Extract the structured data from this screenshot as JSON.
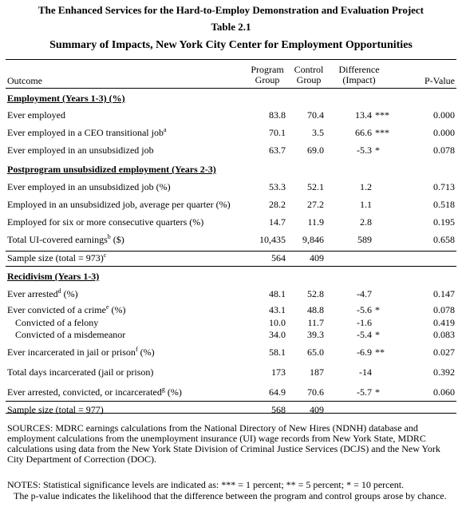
{
  "title_line1": "The Enhanced Services for the Hard-to-Employ Demonstration and Evaluation Project",
  "title_line2": "Table 2.1",
  "title_line3": "Summary of Impacts, New York City Center for Employment Opportunities",
  "headers": {
    "outcome": "Outcome",
    "program_1": "Program",
    "program_2": "Group",
    "control_1": "Control",
    "control_2": "Group",
    "difference_1": "Difference",
    "difference_2": "(Impact)",
    "pvalue": "P-Value"
  },
  "rows": [
    {
      "type": "section",
      "label": "Employment (Years 1-3) (%)",
      "top": 0
    },
    {
      "type": "data",
      "label": "Ever employed",
      "program": "83.8",
      "control": "70.4",
      "difference": "13.4",
      "stars": "***",
      "pvalue": "0.000"
    },
    {
      "type": "data",
      "label": "Ever employed in a CEO transitional job",
      "sup": "a",
      "program": "70.1",
      "control": "3.5",
      "difference": "66.6",
      "stars": "***",
      "pvalue": "0.000"
    },
    {
      "type": "data",
      "label": "Ever employed in an unsubsidized job",
      "program": "63.7",
      "control": "69.0",
      "difference": "-5.3",
      "stars": "*",
      "pvalue": "0.078"
    },
    {
      "type": "section",
      "label": "Postprogram unsubsidized employment  (Years 2-3)"
    },
    {
      "type": "data",
      "label": "Ever employed in an unsubsidized job (%)",
      "program": "53.3",
      "control": "52.1",
      "difference": "1.2",
      "stars": "",
      "pvalue": "0.713"
    },
    {
      "type": "data",
      "label": "Employed in an unsubsidized job, average per quarter (%)",
      "program": "28.2",
      "control": "27.2",
      "difference": "1.1",
      "stars": "",
      "pvalue": "0.518"
    },
    {
      "type": "data",
      "label": "Employed for six or more consecutive quarters (%)",
      "program": "14.7",
      "control": "11.9",
      "difference": "2.8",
      "stars": "",
      "pvalue": "0.195"
    },
    {
      "type": "data",
      "label": "Total UI-covered earnings",
      "sup": "b",
      "suffix": " ($)",
      "program": "10,435",
      "control": "9,846",
      "difference": "589",
      "stars": "",
      "pvalue": "0.658"
    },
    {
      "type": "sample",
      "label": "Sample size (total = 973)",
      "sup": "c",
      "program": "564",
      "control": "409"
    },
    {
      "type": "section",
      "label": "Recidivism (Years 1-3)"
    },
    {
      "type": "data",
      "label": "Ever arrested",
      "sup": "d",
      "suffix": " (%)",
      "program": "48.1",
      "control": "52.8",
      "difference": "-4.7",
      "stars": "",
      "pvalue": "0.147"
    },
    {
      "type": "data",
      "label": "Ever convicted of a crime",
      "sup": "e",
      "suffix": " (%)",
      "program": "43.1",
      "control": "48.8",
      "difference": "-5.6",
      "stars": "*",
      "pvalue": "0.078"
    },
    {
      "type": "data",
      "label": "Convicted of a felony",
      "indent": true,
      "program": "10.0",
      "control": "11.7",
      "difference": "-1.6",
      "stars": "",
      "pvalue": "0.419"
    },
    {
      "type": "data",
      "label": "Convicted of a misdemeanor",
      "indent": true,
      "program": "34.0",
      "control": "39.3",
      "difference": "-5.4",
      "stars": "*",
      "pvalue": "0.083"
    },
    {
      "type": "data",
      "label": "Ever incarcerated in jail or prison",
      "sup": "f",
      "suffix": " (%)",
      "program": "58.1",
      "control": "65.0",
      "difference": "-6.9",
      "stars": "**",
      "pvalue": "0.027"
    },
    {
      "type": "data",
      "label": "Total days incarcerated (jail or prison)",
      "program": "173",
      "control": "187",
      "difference": "-14",
      "stars": "",
      "pvalue": "0.392"
    },
    {
      "type": "data",
      "label": "Ever arrested, convicted, or incarcerated",
      "sup": "g",
      "suffix": " (%)",
      "program": "64.9",
      "control": "70.6",
      "difference": "-5.7",
      "stars": "*",
      "pvalue": "0.060"
    },
    {
      "type": "sample",
      "label": "Sample size (total = 977)",
      "program": "568",
      "control": "409"
    }
  ],
  "sources": "SOURCES: MDRC earnings calculations from the National Directory of New Hires (NDNH) database and employment calculations from the unemployment insurance (UI) wage records from New York State, MDRC calculations using data from the New York State Division of Criminal Justice Services (DCJS) and the New York City Department of Correction (DOC).",
  "notes_1": "NOTES: Statistical significance levels are indicated as: *** = 1 percent; ** = 5 percent; * = 10 percent.",
  "notes_2": "The p-value indicates the likelihood that the difference between the program and control groups arose by chance."
}
